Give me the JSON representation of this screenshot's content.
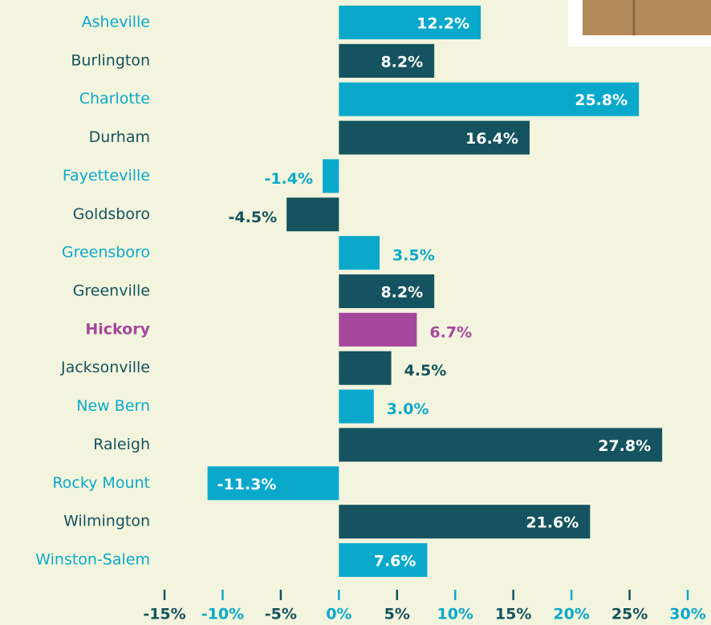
{
  "chart_data": {
    "type": "bar",
    "orientation": "horizontal",
    "categories": [
      "Asheville",
      "Burlington",
      "Charlotte",
      "Durham",
      "Fayetteville",
      "Goldsboro",
      "Greensboro",
      "Greenville",
      "Hickory",
      "Jacksonville",
      "New Bern",
      "Raleigh",
      "Rocky Mount",
      "Wilmington",
      "Winston-Salem"
    ],
    "values": [
      12.2,
      8.2,
      25.8,
      16.4,
      -1.4,
      -4.5,
      3.5,
      8.2,
      6.7,
      4.5,
      3.0,
      27.8,
      -11.3,
      21.6,
      7.6
    ],
    "value_labels": [
      "12.2%",
      "8.2%",
      "25.8%",
      "16.4%",
      "-1.4%",
      "-4.5%",
      "3.5%",
      "8.2%",
      "6.7%",
      "4.5%",
      "3.0%",
      "27.8%",
      "-11.3%",
      "21.6%",
      "7.6%"
    ],
    "colors": [
      "#0aa9cc",
      "#14535f",
      "#0aa9cc",
      "#14535f",
      "#0aa9cc",
      "#14535f",
      "#0aa9cc",
      "#14535f",
      "#a6479e",
      "#14535f",
      "#0aa9cc",
      "#14535f",
      "#0aa9cc",
      "#14535f",
      "#0aa9cc"
    ],
    "xlim": [
      -15,
      30
    ],
    "xticks": [
      {
        "value": -15,
        "label": "-15%"
      },
      {
        "value": -10,
        "label": "-10%"
      },
      {
        "value": -5,
        "label": "-5%"
      },
      {
        "value": 0,
        "label": "0%"
      },
      {
        "value": 5,
        "label": "5%"
      },
      {
        "value": 10,
        "label": "10%"
      },
      {
        "value": 15,
        "label": "15%"
      },
      {
        "value": 20,
        "label": "20%"
      },
      {
        "value": 25,
        "label": "25%"
      },
      {
        "value": 30,
        "label": "30%"
      }
    ]
  }
}
